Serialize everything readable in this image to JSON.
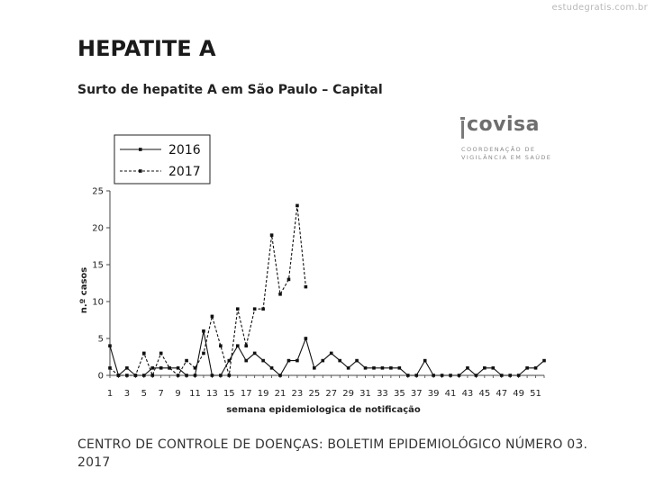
{
  "watermark": "estudegratis.com.br",
  "title": "HEPATITE A",
  "subtitle": "Surto de hepatite A em São Paulo – Capital",
  "logo": {
    "word": "covisa",
    "line1": "COORDENAÇÃO DE",
    "line2": "VIGILÂNCIA EM SAÚDE"
  },
  "source": "CENTRO DE CONTROLE DE DOENÇAS: BOLETIM EPIDEMIOLÓGICO NÚMERO 03. 2017",
  "chart_data": {
    "type": "line",
    "xlabel": "semana epidemiologica de notificação",
    "ylabel": "n.º casos",
    "xlim": [
      1,
      52
    ],
    "ylim": [
      0,
      25
    ],
    "x_ticks": [
      1,
      3,
      5,
      7,
      9,
      11,
      13,
      15,
      17,
      19,
      21,
      23,
      25,
      27,
      29,
      31,
      33,
      35,
      37,
      39,
      41,
      43,
      45,
      47,
      49,
      51
    ],
    "y_ticks": [
      0,
      5,
      10,
      15,
      20,
      25
    ],
    "legend_position": "top-left",
    "series": [
      {
        "name": "2016",
        "style": "solid",
        "x": [
          1,
          2,
          3,
          4,
          5,
          6,
          7,
          8,
          9,
          10,
          11,
          12,
          13,
          14,
          15,
          16,
          17,
          18,
          19,
          20,
          21,
          22,
          23,
          24,
          25,
          26,
          27,
          28,
          29,
          30,
          31,
          32,
          33,
          34,
          35,
          36,
          37,
          38,
          39,
          40,
          41,
          42,
          43,
          44,
          45,
          46,
          47,
          48,
          49,
          50,
          51,
          52
        ],
        "values": [
          4,
          0,
          1,
          0,
          0,
          1,
          1,
          1,
          1,
          0,
          0,
          6,
          0,
          0,
          2,
          4,
          2,
          3,
          2,
          1,
          0,
          2,
          2,
          5,
          1,
          2,
          3,
          2,
          1,
          2,
          1,
          1,
          1,
          1,
          1,
          0,
          0,
          2,
          0,
          0,
          0,
          0,
          1,
          0,
          1,
          1,
          0,
          0,
          0,
          1,
          1,
          2
        ]
      },
      {
        "name": "2017",
        "style": "dashed",
        "x": [
          1,
          2,
          3,
          4,
          5,
          6,
          7,
          8,
          9,
          10,
          11,
          12,
          13,
          14,
          15,
          16,
          17,
          18,
          19,
          20,
          21,
          22,
          23,
          24
        ],
        "values": [
          1,
          0,
          0,
          0,
          3,
          0,
          3,
          1,
          0,
          2,
          1,
          3,
          8,
          4,
          0,
          9,
          4,
          9,
          9,
          19,
          11,
          13,
          23,
          12
        ]
      }
    ]
  }
}
